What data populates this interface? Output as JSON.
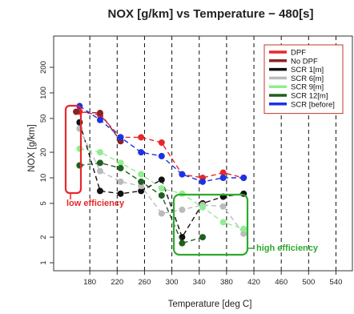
{
  "chart_data": {
    "type": "line",
    "title": "NOX [g/km] vs Temperature − 480[s]",
    "xlabel": "Temperature [deg C]",
    "ylabel": "NOX [g/km]",
    "xlim": [
      140,
      550
    ],
    "ylim": [
      1,
      330
    ],
    "y_scale": "log",
    "x_ticks": [
      180,
      220,
      260,
      300,
      340,
      380,
      420,
      460,
      500,
      540
    ],
    "y_ticks": [
      1,
      2,
      5,
      10,
      20,
      50,
      100,
      200
    ],
    "vertical_grid": "dashed at each x tick",
    "legend": {
      "position": "top-right"
    },
    "series": [
      {
        "name": "DPF",
        "color": "#e8272b",
        "style": "dashed",
        "x": [
          165,
          195,
          225,
          255,
          285,
          315,
          345,
          375,
          405
        ],
        "y": [
          60,
          55,
          30,
          30,
          26,
          11,
          10,
          11.5,
          10
        ]
      },
      {
        "name": "No DPF",
        "color": "#8b2323",
        "style": "dashed",
        "x": [
          160,
          195,
          225
        ],
        "y": [
          60,
          58,
          27
        ]
      },
      {
        "name": "SCR 1[m]",
        "color": "#111111",
        "style": "dashed",
        "x": [
          165,
          195,
          225,
          255,
          285,
          315,
          345,
          375,
          405
        ],
        "y": [
          45,
          7,
          6.5,
          7,
          9.5,
          2,
          5,
          6,
          6.5
        ]
      },
      {
        "name": "SCR 6[m]",
        "color": "#bbbbbb",
        "style": "dashed",
        "x": [
          165,
          195,
          225,
          255,
          285,
          315,
          345,
          375,
          405
        ],
        "y": [
          38,
          12,
          9,
          8,
          3.8,
          4.2,
          4.8,
          4.6,
          2.2
        ]
      },
      {
        "name": "SCR 9[m]",
        "color": "#90ee90",
        "style": "dashed",
        "x": [
          165,
          195,
          225,
          255,
          285,
          315,
          345,
          375,
          405
        ],
        "y": [
          22,
          20,
          15,
          11,
          7.5,
          6.5,
          4.5,
          3,
          2.5
        ]
      },
      {
        "name": "SCR 12[m]",
        "color": "#1f5f1f",
        "style": "dashed",
        "x": [
          165,
          195,
          225,
          255,
          285,
          315,
          345
        ],
        "y": [
          14,
          15,
          13,
          9,
          6.2,
          1.7,
          2
        ]
      },
      {
        "name": "SCR [before]",
        "color": "#1a33e6",
        "style": "dashed",
        "x": [
          165,
          195,
          225,
          255,
          285,
          315,
          345,
          375,
          405
        ],
        "y": [
          70,
          48,
          30,
          20,
          18,
          11,
          9,
          10,
          10
        ]
      }
    ],
    "annotations": [
      {
        "text": "low efficiency",
        "color": "#e8272b"
      },
      {
        "text": "high efficiency",
        "color": "#2eaa2e"
      }
    ]
  }
}
